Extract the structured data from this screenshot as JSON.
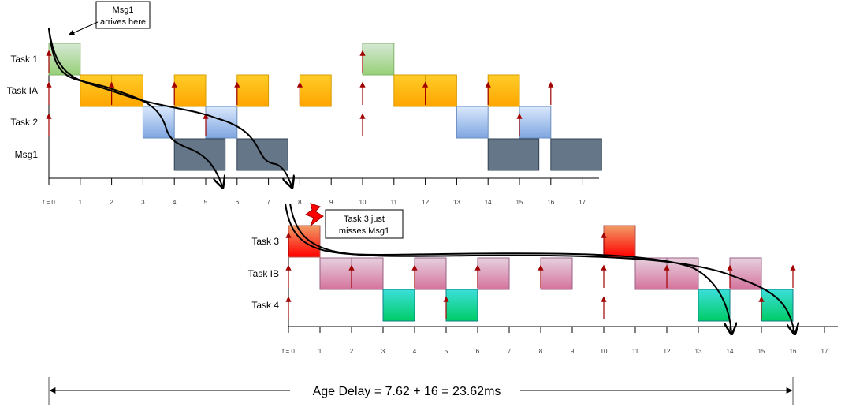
{
  "diagram": {
    "top": {
      "rows": [
        "Task 1",
        "Task IA",
        "Task 2",
        "Msg1"
      ],
      "ticks": [
        "t = 0",
        "1",
        "2",
        "3",
        "4",
        "5",
        "6",
        "7",
        "8",
        "9",
        "10",
        "11",
        "12",
        "13",
        "14",
        "15",
        "16",
        "17"
      ],
      "blocks": [
        {
          "row": 0,
          "start": 0,
          "end": 1,
          "color": "green"
        },
        {
          "row": 1,
          "start": 1,
          "end": 2,
          "color": "orange"
        },
        {
          "row": 1,
          "start": 2,
          "end": 3,
          "color": "orange"
        },
        {
          "row": 2,
          "start": 3,
          "end": 4,
          "color": "blue"
        },
        {
          "row": 1,
          "start": 4,
          "end": 5,
          "color": "orange"
        },
        {
          "row": 3,
          "start": 4,
          "end": 5.62,
          "color": "slate"
        },
        {
          "row": 2,
          "start": 5,
          "end": 6,
          "color": "blue"
        },
        {
          "row": 1,
          "start": 6,
          "end": 7,
          "color": "orange"
        },
        {
          "row": 3,
          "start": 6,
          "end": 7.62,
          "color": "slate"
        },
        {
          "row": 1,
          "start": 8,
          "end": 9,
          "color": "orange"
        },
        {
          "row": 0,
          "start": 10,
          "end": 11,
          "color": "green"
        },
        {
          "row": 1,
          "start": 11,
          "end": 12,
          "color": "orange"
        },
        {
          "row": 1,
          "start": 12,
          "end": 13,
          "color": "orange"
        },
        {
          "row": 2,
          "start": 13,
          "end": 14,
          "color": "blue"
        },
        {
          "row": 1,
          "start": 14,
          "end": 15,
          "color": "orange"
        },
        {
          "row": 3,
          "start": 14,
          "end": 15.62,
          "color": "slate"
        },
        {
          "row": 2,
          "start": 15,
          "end": 16,
          "color": "blue"
        },
        {
          "row": 3,
          "start": 16,
          "end": 17.62,
          "color": "slate"
        }
      ],
      "arrivals": [
        {
          "row": 0,
          "t": 0
        },
        {
          "row": 1,
          "t": 0
        },
        {
          "row": 2,
          "t": 0
        },
        {
          "row": 1,
          "t": 2
        },
        {
          "row": 1,
          "t": 4
        },
        {
          "row": 2,
          "t": 5
        },
        {
          "row": 1,
          "t": 6
        },
        {
          "row": 1,
          "t": 8
        },
        {
          "row": 0,
          "t": 10
        },
        {
          "row": 1,
          "t": 10
        },
        {
          "row": 2,
          "t": 10
        },
        {
          "row": 1,
          "t": 12
        },
        {
          "row": 1,
          "t": 14
        },
        {
          "row": 2,
          "t": 15
        },
        {
          "row": 1,
          "t": 16
        }
      ]
    },
    "bottom": {
      "rows": [
        "Task 3",
        "Task IB",
        "Task 4"
      ],
      "ticks": [
        "t = 0",
        "1",
        "2",
        "3",
        "4",
        "5",
        "6",
        "7",
        "8",
        "9",
        "10",
        "11",
        "12",
        "13",
        "14",
        "15",
        "16",
        "17"
      ],
      "blocks": [
        {
          "row": 0,
          "start": 0,
          "end": 1,
          "color": "red"
        },
        {
          "row": 1,
          "start": 1,
          "end": 2,
          "color": "pink"
        },
        {
          "row": 1,
          "start": 2,
          "end": 3,
          "color": "pink"
        },
        {
          "row": 2,
          "start": 3,
          "end": 4,
          "color": "teal"
        },
        {
          "row": 1,
          "start": 4,
          "end": 5,
          "color": "pink"
        },
        {
          "row": 2,
          "start": 5,
          "end": 6,
          "color": "teal"
        },
        {
          "row": 1,
          "start": 6,
          "end": 7,
          "color": "pink"
        },
        {
          "row": 1,
          "start": 8,
          "end": 9,
          "color": "pink"
        },
        {
          "row": 0,
          "start": 10,
          "end": 11,
          "color": "red"
        },
        {
          "row": 1,
          "start": 11,
          "end": 12,
          "color": "pink"
        },
        {
          "row": 1,
          "start": 12,
          "end": 13,
          "color": "pink"
        },
        {
          "row": 2,
          "start": 13,
          "end": 14,
          "color": "teal"
        },
        {
          "row": 1,
          "start": 14,
          "end": 15,
          "color": "pink"
        },
        {
          "row": 2,
          "start": 15,
          "end": 16,
          "color": "teal"
        }
      ],
      "arrivals": [
        {
          "row": 0,
          "t": 0
        },
        {
          "row": 1,
          "t": 0
        },
        {
          "row": 2,
          "t": 0
        },
        {
          "row": 1,
          "t": 2
        },
        {
          "row": 1,
          "t": 4
        },
        {
          "row": 2,
          "t": 5
        },
        {
          "row": 1,
          "t": 6
        },
        {
          "row": 1,
          "t": 8
        },
        {
          "row": 0,
          "t": 10
        },
        {
          "row": 1,
          "t": 10
        },
        {
          "row": 2,
          "t": 10
        },
        {
          "row": 1,
          "t": 12
        },
        {
          "row": 1,
          "t": 14
        },
        {
          "row": 2,
          "t": 15
        },
        {
          "row": 1,
          "t": 16
        }
      ]
    },
    "notes": {
      "msg1": [
        "Msg1",
        "arrives here"
      ],
      "task3": [
        "Task 3 just",
        "misses Msg1"
      ]
    },
    "age_delay": "Age Delay =  7.62 + 16 = 23.62ms",
    "colors": {
      "green": [
        "#d5e8d4",
        "#97d077",
        "#82b366"
      ],
      "orange": [
        "#ffcd28",
        "#ffa500",
        "#d79b00"
      ],
      "blue": [
        "#dae8fc",
        "#7ea6e0",
        "#6c8ebf"
      ],
      "slate": [
        "#647687",
        "#647687",
        "#314354"
      ],
      "red": [
        "#f19c65",
        "#ff0000",
        "#b85450"
      ],
      "pink": [
        "#e6d0de",
        "#d5739d",
        "#996185"
      ],
      "teal": [
        "#3cdfdb",
        "#00cc66",
        "#0e8088"
      ],
      "arrival_arrow": "#a00000"
    }
  }
}
